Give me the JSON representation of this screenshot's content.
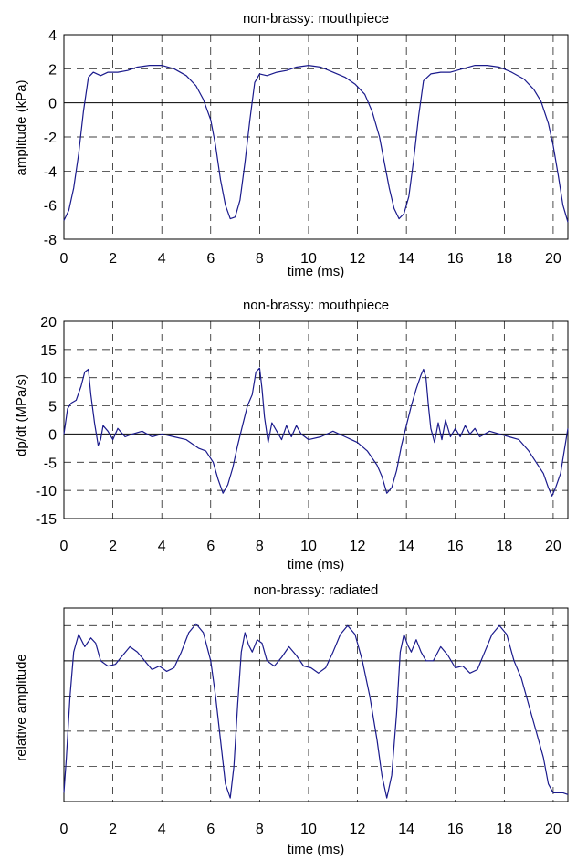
{
  "colors": {
    "trace": "#1a1a8c",
    "axes": "#000000"
  },
  "chart_data": [
    {
      "type": "line",
      "title": "non-brassy: mouthpiece",
      "xlabel": "time (ms)",
      "ylabel": "amplitude (kPa)",
      "xlim": [
        0,
        20.6
      ],
      "ylim": [
        -8,
        4
      ],
      "x_ticks": [
        0,
        2,
        4,
        6,
        8,
        10,
        12,
        14,
        16,
        18,
        20
      ],
      "y_ticks": [
        -8,
        -6,
        -4,
        -2,
        0,
        2,
        4
      ],
      "y_tick_labels": [
        "-8",
        "-6",
        "-4",
        "-2",
        "0",
        "2",
        "4"
      ],
      "grid": true,
      "series": [
        {
          "x": [
            0,
            0.2,
            0.4,
            0.6,
            0.8,
            1.0,
            1.2,
            1.5,
            1.8,
            2.2,
            2.6,
            3.0,
            3.5,
            4.0,
            4.5,
            5.0,
            5.4,
            5.7,
            6.0,
            6.2,
            6.4,
            6.6,
            6.8,
            7.0,
            7.2,
            7.4,
            7.6,
            7.8,
            8.0,
            8.3,
            8.7,
            9.1,
            9.5,
            10.0,
            10.5,
            11.0,
            11.5,
            11.9,
            12.3,
            12.6,
            12.9,
            13.1,
            13.3,
            13.5,
            13.7,
            13.9,
            14.1,
            14.3,
            14.5,
            14.7,
            15.0,
            15.4,
            15.8,
            16.3,
            16.8,
            17.3,
            17.8,
            18.3,
            18.8,
            19.2,
            19.5,
            19.8,
            20.0,
            20.2,
            20.4,
            20.6
          ],
          "y": [
            -6.9,
            -6.3,
            -5.0,
            -3.0,
            -0.5,
            1.5,
            1.8,
            1.6,
            1.8,
            1.8,
            1.9,
            2.1,
            2.2,
            2.2,
            2.0,
            1.6,
            1.0,
            0.2,
            -1.0,
            -2.5,
            -4.5,
            -6.0,
            -6.8,
            -6.7,
            -5.7,
            -3.5,
            -1.0,
            1.2,
            1.7,
            1.6,
            1.8,
            1.9,
            2.1,
            2.2,
            2.1,
            1.8,
            1.5,
            1.1,
            0.5,
            -0.5,
            -2.0,
            -3.5,
            -5.0,
            -6.2,
            -6.8,
            -6.5,
            -5.5,
            -3.3,
            -0.8,
            1.3,
            1.7,
            1.8,
            1.8,
            2.0,
            2.2,
            2.2,
            2.1,
            1.8,
            1.4,
            0.8,
            0.1,
            -1.2,
            -2.5,
            -4.2,
            -6.0,
            -7.0
          ]
        }
      ]
    },
    {
      "type": "line",
      "title": "non-brassy: mouthpiece",
      "xlabel": "time (ms)",
      "ylabel": "dp/dt (MPa/s)",
      "xlim": [
        0,
        20.6
      ],
      "ylim": [
        -15,
        20
      ],
      "x_ticks": [
        0,
        2,
        4,
        6,
        8,
        10,
        12,
        14,
        16,
        18,
        20
      ],
      "y_ticks": [
        -15,
        -10,
        -5,
        0,
        5,
        10,
        15,
        20
      ],
      "y_tick_labels": [
        "-15",
        "-10",
        "-5",
        "0",
        "5",
        "10",
        "15",
        "20"
      ],
      "grid": true,
      "series": [
        {
          "x": [
            0,
            0.15,
            0.3,
            0.5,
            0.7,
            0.85,
            1.0,
            1.1,
            1.25,
            1.4,
            1.5,
            1.6,
            1.8,
            2.0,
            2.2,
            2.5,
            2.8,
            3.2,
            3.6,
            4.0,
            4.5,
            5.0,
            5.5,
            5.8,
            6.1,
            6.3,
            6.5,
            6.7,
            6.9,
            7.1,
            7.3,
            7.5,
            7.7,
            7.85,
            8.0,
            8.1,
            8.2,
            8.35,
            8.5,
            8.7,
            8.9,
            9.1,
            9.3,
            9.5,
            9.7,
            10.0,
            10.5,
            11.0,
            11.5,
            12.0,
            12.4,
            12.8,
            13.0,
            13.2,
            13.4,
            13.6,
            13.8,
            14.0,
            14.2,
            14.4,
            14.6,
            14.7,
            14.8,
            14.9,
            15.0,
            15.15,
            15.3,
            15.45,
            15.6,
            15.8,
            16.0,
            16.2,
            16.4,
            16.6,
            16.8,
            17.0,
            17.4,
            17.8,
            18.2,
            18.6,
            19.0,
            19.3,
            19.6,
            19.8,
            19.95,
            20.1,
            20.3,
            20.45,
            20.6
          ],
          "y": [
            0,
            4.5,
            5.5,
            6.0,
            8.5,
            11.0,
            11.5,
            7.0,
            2.0,
            -2.0,
            -1.0,
            1.5,
            0.5,
            -1.0,
            1.0,
            -0.5,
            0.0,
            0.5,
            -0.5,
            0.0,
            -0.5,
            -1.0,
            -2.5,
            -3.0,
            -5.0,
            -8.0,
            -10.5,
            -9.0,
            -6.0,
            -2.0,
            1.5,
            5.0,
            7.0,
            11.0,
            11.7,
            8.0,
            3.0,
            -1.5,
            2.0,
            0.5,
            -1.0,
            1.5,
            -0.5,
            1.5,
            0.0,
            -1.0,
            -0.5,
            0.5,
            -0.5,
            -1.5,
            -3.0,
            -5.5,
            -7.5,
            -10.5,
            -9.5,
            -6.5,
            -2.0,
            1.5,
            5.0,
            8.0,
            10.5,
            11.5,
            10.0,
            5.0,
            1.0,
            -1.5,
            2.0,
            -1.0,
            2.5,
            -0.5,
            1.0,
            -0.5,
            1.5,
            0.0,
            1.0,
            -0.5,
            0.5,
            0.0,
            -0.5,
            -1.0,
            -3.0,
            -5.0,
            -7.0,
            -9.5,
            -11.0,
            -9.5,
            -7.0,
            -3.0,
            1.0
          ]
        }
      ]
    },
    {
      "type": "line",
      "title": "non-brassy: radiated",
      "xlabel": "time (ms)",
      "ylabel": "relative amplitude",
      "xlim": [
        0,
        20.6
      ],
      "ylim": [
        -8,
        3
      ],
      "x_ticks": [
        0,
        2,
        4,
        6,
        8,
        10,
        12,
        14,
        16,
        18,
        20
      ],
      "y_ticks": [
        -8,
        -6,
        -4,
        -2,
        0,
        2
      ],
      "y_tick_labels": [
        "",
        "",
        "",
        "",
        "",
        ""
      ],
      "grid": true,
      "series": [
        {
          "x": [
            0,
            0.1,
            0.25,
            0.4,
            0.6,
            0.85,
            1.1,
            1.3,
            1.5,
            1.8,
            2.1,
            2.4,
            2.7,
            3.0,
            3.3,
            3.6,
            3.9,
            4.2,
            4.5,
            4.8,
            5.1,
            5.4,
            5.7,
            6.0,
            6.2,
            6.4,
            6.6,
            6.8,
            6.95,
            7.1,
            7.25,
            7.4,
            7.55,
            7.7,
            7.9,
            8.1,
            8.3,
            8.6,
            8.9,
            9.2,
            9.5,
            9.8,
            10.1,
            10.4,
            10.7,
            11.0,
            11.3,
            11.6,
            11.9,
            12.2,
            12.5,
            12.8,
            13.0,
            13.2,
            13.4,
            13.6,
            13.75,
            13.9,
            14.05,
            14.2,
            14.4,
            14.6,
            14.8,
            15.1,
            15.4,
            15.7,
            16.0,
            16.3,
            16.6,
            16.9,
            17.2,
            17.5,
            17.8,
            18.1,
            18.4,
            18.7,
            19.0,
            19.3,
            19.6,
            19.8,
            20.0,
            20.2,
            20.4,
            20.6
          ],
          "y": [
            -7.5,
            -5.5,
            -2.0,
            0.5,
            1.5,
            0.8,
            1.3,
            1.0,
            0.0,
            -0.3,
            -0.2,
            0.3,
            0.8,
            0.5,
            0.0,
            -0.5,
            -0.3,
            -0.6,
            -0.4,
            0.5,
            1.6,
            2.1,
            1.6,
            0.0,
            -2.0,
            -4.5,
            -7.0,
            -7.8,
            -6.0,
            -2.5,
            0.5,
            1.6,
            0.9,
            0.5,
            1.2,
            1.0,
            0.0,
            -0.3,
            0.2,
            0.8,
            0.3,
            -0.3,
            -0.4,
            -0.7,
            -0.4,
            0.5,
            1.5,
            2.0,
            1.5,
            0.0,
            -2.0,
            -4.5,
            -6.5,
            -7.8,
            -6.5,
            -3.0,
            0.5,
            1.5,
            0.9,
            0.5,
            1.2,
            0.5,
            0.0,
            0.0,
            0.8,
            0.3,
            -0.4,
            -0.3,
            -0.7,
            -0.5,
            0.5,
            1.5,
            2.0,
            1.5,
            0.0,
            -1.0,
            -2.5,
            -4.0,
            -5.5,
            -7.0,
            -7.5,
            -7.5,
            -7.5,
            -7.6
          ]
        }
      ]
    }
  ]
}
